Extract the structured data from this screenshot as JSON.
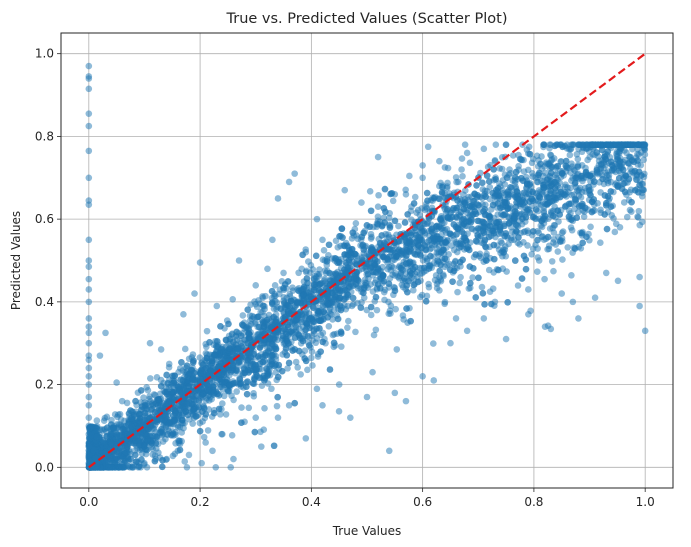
{
  "chart_data": {
    "type": "scatter",
    "title": "True vs. Predicted Values (Scatter Plot)",
    "xlabel": "True Values",
    "ylabel": "Predicted Values",
    "xlim": [
      -0.05,
      1.05
    ],
    "ylim": [
      -0.05,
      1.05
    ],
    "xticks": [
      "0.0",
      "0.2",
      "0.4",
      "0.6",
      "0.8",
      "1.0"
    ],
    "yticks": [
      "0.0",
      "0.2",
      "0.4",
      "0.6",
      "0.8",
      "1.0"
    ],
    "xtick_values": [
      0.0,
      0.2,
      0.4,
      0.6,
      0.8,
      1.0
    ],
    "ytick_values": [
      0.0,
      0.2,
      0.4,
      0.6,
      0.8,
      1.0
    ],
    "grid": true,
    "point_color": "#1f77b4",
    "point_alpha": 0.5,
    "reference_line": {
      "x": [
        0,
        1
      ],
      "y": [
        0,
        1
      ],
      "color": "#e31a1c",
      "style": "dashed"
    },
    "series": [
      {
        "points": [
          [
            0.0,
            0.97
          ],
          [
            0.0,
            0.945
          ],
          [
            0.0,
            0.94
          ],
          [
            0.0,
            0.915
          ],
          [
            0.0,
            0.855
          ],
          [
            0.0,
            0.825
          ],
          [
            0.0,
            0.765
          ],
          [
            0.0,
            0.7
          ],
          [
            0.0,
            0.645
          ],
          [
            0.0,
            0.635
          ],
          [
            0.0,
            0.55
          ],
          [
            0.0,
            0.5
          ],
          [
            0.0,
            0.485
          ],
          [
            0.0,
            0.455
          ],
          [
            0.0,
            0.43
          ],
          [
            0.0,
            0.4
          ],
          [
            0.0,
            0.36
          ],
          [
            0.0,
            0.34
          ],
          [
            0.0,
            0.325
          ],
          [
            0.0,
            0.3
          ],
          [
            0.0,
            0.27
          ],
          [
            0.0,
            0.26
          ],
          [
            0.0,
            0.24
          ],
          [
            0.0,
            0.22
          ],
          [
            0.0,
            0.2
          ],
          [
            0.0,
            0.17
          ],
          [
            0.0,
            0.15
          ],
          [
            0.0,
            0.12
          ],
          [
            0.0,
            0.1
          ],
          [
            0.0,
            0.08
          ],
          [
            0.0,
            0.05
          ],
          [
            0.0,
            0.03
          ],
          [
            0.0,
            0.01
          ],
          [
            0.03,
            0.325
          ],
          [
            0.02,
            0.27
          ],
          [
            0.05,
            0.205
          ],
          [
            0.06,
            0.16
          ],
          [
            0.11,
            0.3
          ],
          [
            0.13,
            0.285
          ],
          [
            0.17,
            0.37
          ],
          [
            0.2,
            0.495
          ],
          [
            0.19,
            0.42
          ],
          [
            0.23,
            0.39
          ],
          [
            0.27,
            0.5
          ],
          [
            0.3,
            0.44
          ],
          [
            0.33,
            0.55
          ],
          [
            0.36,
            0.69
          ],
          [
            0.37,
            0.71
          ],
          [
            0.34,
            0.65
          ],
          [
            0.41,
            0.6
          ],
          [
            0.46,
            0.67
          ],
          [
            0.49,
            0.64
          ],
          [
            0.52,
            0.75
          ],
          [
            0.55,
            0.66
          ],
          [
            0.6,
            0.73
          ],
          [
            0.61,
            0.775
          ],
          [
            0.64,
            0.725
          ],
          [
            0.35,
            0.47
          ],
          [
            0.39,
            0.52
          ],
          [
            0.42,
            0.55
          ],
          [
            0.48,
            0.59
          ],
          [
            0.52,
            0.63
          ],
          [
            0.57,
            0.66
          ],
          [
            0.6,
            0.7
          ],
          [
            0.63,
            0.74
          ],
          [
            0.68,
            0.76
          ],
          [
            0.71,
            0.77
          ],
          [
            0.75,
            0.78
          ],
          [
            0.58,
            0.63
          ],
          [
            0.63,
            0.68
          ],
          [
            0.67,
            0.72
          ],
          [
            0.73,
            0.74
          ],
          [
            0.26,
            0.02
          ],
          [
            0.31,
            0.05
          ],
          [
            0.34,
            0.12
          ],
          [
            0.39,
            0.07
          ],
          [
            0.47,
            0.12
          ],
          [
            0.42,
            0.15
          ],
          [
            0.5,
            0.17
          ],
          [
            0.54,
            0.04
          ],
          [
            0.55,
            0.18
          ],
          [
            0.57,
            0.16
          ],
          [
            0.6,
            0.22
          ],
          [
            0.62,
            0.21
          ],
          [
            0.65,
            0.3
          ],
          [
            0.68,
            0.33
          ],
          [
            0.71,
            0.36
          ],
          [
            0.75,
            0.31
          ],
          [
            0.79,
            0.37
          ],
          [
            0.82,
            0.34
          ],
          [
            0.85,
            0.42
          ],
          [
            0.87,
            0.4
          ],
          [
            0.93,
            0.47
          ],
          [
            0.99,
            0.46
          ],
          [
            0.99,
            0.39
          ],
          [
            1.0,
            0.33
          ],
          [
            0.91,
            0.41
          ],
          [
            0.88,
            0.36
          ],
          [
            0.79,
            0.43
          ],
          [
            0.73,
            0.4
          ],
          [
            0.66,
            0.36
          ],
          [
            0.16,
            0.04
          ],
          [
            0.18,
            0.03
          ],
          [
            0.14,
            0.02
          ],
          [
            0.21,
            0.06
          ],
          [
            0.24,
            0.08
          ],
          [
            0.28,
            0.11
          ],
          [
            0.3,
            0.12
          ],
          [
            0.36,
            0.15
          ],
          [
            0.45,
            0.2
          ],
          [
            0.51,
            0.23
          ],
          [
            0.04,
            0.0
          ],
          [
            0.06,
            0.01
          ],
          [
            0.08,
            0.005
          ],
          [
            0.1,
            0.01
          ],
          [
            0.12,
            0.02
          ]
        ]
      }
    ]
  }
}
